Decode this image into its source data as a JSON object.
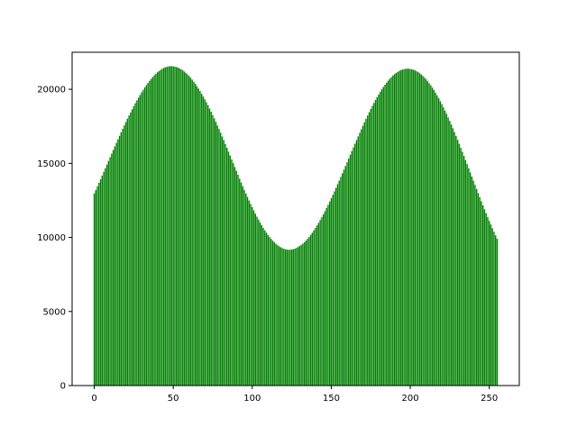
{
  "chart_data": {
    "type": "bar",
    "bar_color": "#008000",
    "x_range": [
      0,
      255
    ],
    "xlim": [
      -14,
      269
    ],
    "ylim": [
      0,
      22500
    ],
    "xticks": [
      0,
      50,
      100,
      150,
      200,
      250
    ],
    "yticks": [
      0,
      5000,
      10000,
      15000,
      20000
    ],
    "xtick_labels": [
      "0",
      "50",
      "100",
      "150",
      "200",
      "250"
    ],
    "ytick_labels": [
      "0",
      "5000",
      "10000",
      "15000",
      "20000"
    ],
    "grid": false,
    "x": [
      0,
      1,
      2,
      3,
      4,
      5,
      6,
      7,
      8,
      9,
      10,
      11,
      12,
      13,
      14,
      15,
      16,
      17,
      18,
      19,
      20,
      21,
      22,
      23,
      24,
      25,
      26,
      27,
      28,
      29,
      30,
      31,
      32,
      33,
      34,
      35,
      36,
      37,
      38,
      39,
      40,
      41,
      42,
      43,
      44,
      45,
      46,
      47,
      48,
      49,
      50,
      51,
      52,
      53,
      54,
      55,
      56,
      57,
      58,
      59,
      60,
      61,
      62,
      63,
      64,
      65,
      66,
      67,
      68,
      69,
      70,
      71,
      72,
      73,
      74,
      75,
      76,
      77,
      78,
      79,
      80,
      81,
      82,
      83,
      84,
      85,
      86,
      87,
      88,
      89,
      90,
      91,
      92,
      93,
      94,
      95,
      96,
      97,
      98,
      99,
      100,
      101,
      102,
      103,
      104,
      105,
      106,
      107,
      108,
      109,
      110,
      111,
      112,
      113,
      114,
      115,
      116,
      117,
      118,
      119,
      120,
      121,
      122,
      123,
      124,
      125,
      126,
      127,
      128,
      129,
      130,
      131,
      132,
      133,
      134,
      135,
      136,
      137,
      138,
      139,
      140,
      141,
      142,
      143,
      144,
      145,
      146,
      147,
      148,
      149,
      150,
      151,
      152,
      153,
      154,
      155,
      156,
      157,
      158,
      159,
      160,
      161,
      162,
      163,
      164,
      165,
      166,
      167,
      168,
      169,
      170,
      171,
      172,
      173,
      174,
      175,
      176,
      177,
      178,
      179,
      180,
      181,
      182,
      183,
      184,
      185,
      186,
      187,
      188,
      189,
      190,
      191,
      192,
      193,
      194,
      195,
      196,
      197,
      198,
      199,
      200,
      201,
      202,
      203,
      204,
      205,
      206,
      207,
      208,
      209,
      210,
      211,
      212,
      213,
      214,
      215,
      216,
      217,
      218,
      219,
      220,
      221,
      222,
      223,
      224,
      225,
      226,
      227,
      228,
      229,
      230,
      231,
      232,
      233,
      234,
      235,
      236,
      237,
      238,
      239,
      240,
      241,
      242,
      243,
      244,
      245,
      246,
      247,
      248,
      249,
      250,
      251,
      252,
      253,
      254,
      255
    ],
    "values": [
      12970,
      13200,
      13440,
      13690,
      13930,
      14180,
      14420,
      14670,
      14910,
      15160,
      15410,
      15650,
      15900,
      16140,
      16380,
      16620,
      16860,
      17100,
      17330,
      17560,
      17790,
      18010,
      18230,
      18440,
      18650,
      18860,
      19060,
      19250,
      19440,
      19620,
      19800,
      19960,
      20130,
      20280,
      20430,
      20570,
      20700,
      20830,
      20940,
      21050,
      21150,
      21230,
      21310,
      21380,
      21440,
      21480,
      21520,
      21540,
      21560,
      21560,
      21550,
      21530,
      21500,
      21460,
      21410,
      21350,
      21280,
      21200,
      21110,
      21010,
      20900,
      20780,
      20650,
      20510,
      20370,
      20210,
      20050,
      19880,
      19700,
      19510,
      19320,
      19120,
      18920,
      18700,
      18490,
      18260,
      18030,
      17800,
      17560,
      17320,
      17070,
      16820,
      16570,
      16310,
      16050,
      15790,
      15530,
      15270,
      15010,
      14750,
      14490,
      14230,
      13970,
      13710,
      13460,
      13210,
      12970,
      12730,
      12490,
      12260,
      12040,
      11820,
      11600,
      11400,
      11200,
      11000,
      10820,
      10640,
      10480,
      10320,
      10170,
      10030,
      9900,
      9780,
      9670,
      9570,
      9480,
      9400,
      9340,
      9280,
      9240,
      9200,
      9180,
      9170,
      9170,
      9180,
      9210,
      9240,
      9290,
      9350,
      9420,
      9490,
      9580,
      9680,
      9790,
      9910,
      10040,
      10180,
      10320,
      10480,
      10640,
      10810,
      10990,
      11180,
      11370,
      11570,
      11770,
      11980,
      12200,
      12420,
      12650,
      12880,
      13110,
      13350,
      13590,
      13830,
      14080,
      14330,
      14570,
      14820,
      15070,
      15320,
      15580,
      15830,
      16080,
      16330,
      16570,
      16820,
      17060,
      17300,
      17540,
      17770,
      18000,
      18230,
      18450,
      18670,
      18880,
      19080,
      19280,
      19470,
      19650,
      19830,
      20000,
      20160,
      20310,
      20450,
      20580,
      20710,
      20820,
      20930,
      21020,
      21100,
      21170,
      21240,
      21290,
      21330,
      21360,
      21380,
      21390,
      21390,
      21370,
      21350,
      21320,
      21280,
      21220,
      21160,
      21080,
      21000,
      20900,
      20790,
      20680,
      20550,
      20410,
      20270,
      20110,
      19950,
      19770,
      19590,
      19400,
      19200,
      19000,
      18780,
      18560,
      18340,
      18100,
      17860,
      17620,
      17370,
      17110,
      16850,
      16590,
      16320,
      16050,
      15780,
      15500,
      15220,
      14950,
      14670,
      14390,
      14110,
      13830,
      13550,
      13270,
      12990,
      12720,
      12440,
      12170,
      11900,
      11640,
      11380,
      11120,
      10870,
      10620,
      10380,
      10140,
      9910
    ]
  }
}
